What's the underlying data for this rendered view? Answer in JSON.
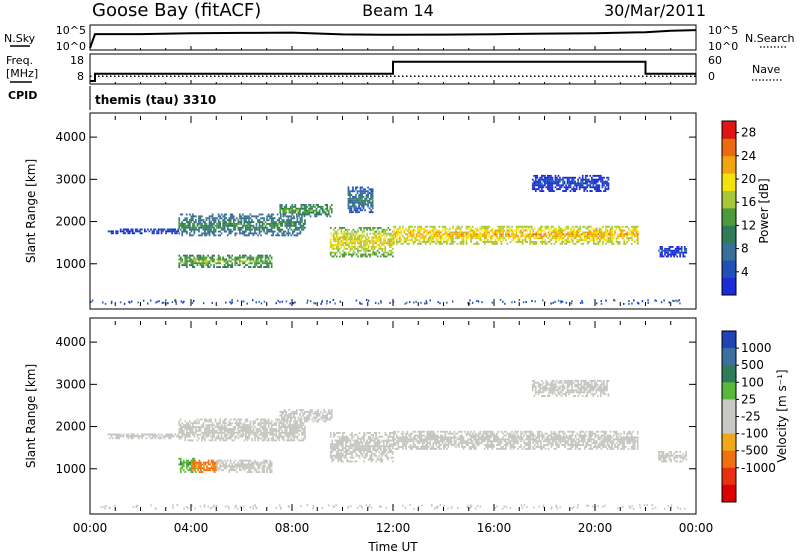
{
  "header": {
    "station": "Goose Bay (fitACF)",
    "beam": "Beam 14",
    "date": "30/Mar/2011"
  },
  "noise_panel": {
    "left_label": "N.Sky",
    "left_ticks": [
      "10^5",
      "10^0"
    ],
    "right_label": "N.Search",
    "right_ticks": [
      "10^5",
      "10^0"
    ]
  },
  "freq_panel": {
    "left_label_1": "Freq.",
    "left_label_2": "[MHz]",
    "left_ticks": [
      "18",
      "8"
    ],
    "right_label": "Nave",
    "right_ticks": [
      "60",
      "0"
    ],
    "cpid_label": "CPID",
    "cpid_text": "themis (tau) 3310"
  },
  "colors": {
    "power_scale": [
      "#1a2cd8",
      "#1f4fb8",
      "#3a6f9a",
      "#2f7a57",
      "#4b9b3a",
      "#a8c83a",
      "#f3e20e",
      "#f2a410",
      "#ec6a10",
      "#e01616"
    ],
    "velocity_scale": [
      "#2242b8",
      "#3a6fa0",
      "#2f7a57",
      "#58b83a",
      "#c8c8c4",
      "#c8c8c4",
      "#f0a818",
      "#f07010",
      "#e83010",
      "#dd0000"
    ],
    "ground_scatter": "#c6c6c0"
  },
  "chart_data": [
    {
      "type": "line",
      "title": "",
      "xlabel": "",
      "ylabel": "N.Sky",
      "x_unit": "hours UT",
      "xlim": [
        0,
        24
      ],
      "yscale": "log",
      "ylim": [
        1,
        100000
      ],
      "series": [
        {
          "name": "N.Sky",
          "x": [
            0,
            0.2,
            2,
            4,
            6,
            8,
            10,
            12,
            14,
            16,
            18,
            20,
            22,
            23,
            24
          ],
          "values": [
            1,
            3000,
            3000,
            5000,
            6000,
            7000,
            2500,
            2000,
            2200,
            2800,
            4000,
            5000,
            9000,
            20000,
            30000
          ]
        }
      ]
    },
    {
      "type": "line",
      "title": "",
      "xlabel": "",
      "ylabel": "Freq. [MHz]",
      "xlim": [
        0,
        24
      ],
      "ylim": [
        8,
        18
      ],
      "right_axis": {
        "label": "Nave",
        "ylim": [
          0,
          60
        ]
      },
      "series": [
        {
          "name": "Freq.",
          "x": [
            0,
            0.2,
            0.2,
            12,
            12,
            22,
            22,
            24
          ],
          "values": [
            8,
            8,
            11,
            11,
            16,
            16,
            11,
            11
          ]
        },
        {
          "name": "Nave",
          "x": [
            0,
            24
          ],
          "values": [
            12,
            12
          ]
        }
      ]
    },
    {
      "type": "heatmap",
      "title": "",
      "xlabel": "",
      "ylabel": "Slant Range [km]",
      "xlim": [
        0,
        24
      ],
      "ylim": [
        0,
        4500
      ],
      "yticks": [
        1000,
        2000,
        3000,
        4000
      ],
      "colorbar": {
        "label": "Power [dB]",
        "ticks": [
          "4",
          "8",
          "12",
          "16",
          "20",
          "24",
          "28"
        ],
        "range": [
          0,
          30
        ]
      },
      "bands": [
        {
          "t0": 0.7,
          "t1": 3.5,
          "r0": 1700,
          "r1": 1820,
          "value": 6
        },
        {
          "t0": 3.5,
          "t1": 8.5,
          "r0": 1650,
          "r1": 2150,
          "value": 12
        },
        {
          "t0": 7.5,
          "t1": 9.6,
          "r0": 2100,
          "r1": 2400,
          "value": 14
        },
        {
          "t0": 3.5,
          "t1": 7.2,
          "r0": 900,
          "r1": 1200,
          "value": 16
        },
        {
          "t0": 9.5,
          "t1": 12.0,
          "r0": 1150,
          "r1": 1850,
          "value": 20
        },
        {
          "t0": 12.0,
          "t1": 21.7,
          "r0": 1450,
          "r1": 1900,
          "value": 22
        },
        {
          "t0": 10.2,
          "t1": 11.2,
          "r0": 2200,
          "r1": 2800,
          "value": 10
        },
        {
          "t0": 17.5,
          "t1": 20.5,
          "r0": 2700,
          "r1": 3100,
          "value": 5
        },
        {
          "t0": 22.5,
          "t1": 23.6,
          "r0": 1150,
          "r1": 1400,
          "value": 5
        }
      ]
    },
    {
      "type": "heatmap",
      "title": "",
      "xlabel": "Time UT",
      "ylabel": "Slant Range [km]",
      "xlim": [
        0,
        24
      ],
      "ylim": [
        0,
        4500
      ],
      "xticks": [
        "00:00",
        "04:00",
        "08:00",
        "12:00",
        "16:00",
        "20:00",
        "00:00"
      ],
      "yticks": [
        1000,
        2000,
        3000,
        4000
      ],
      "colorbar": {
        "label": "Velocity [m s⁻¹]",
        "ticks": [
          "1000",
          "500",
          "100",
          "25",
          "-25",
          "-100",
          "-500",
          "-1000"
        ]
      },
      "bands": [
        {
          "t0": 0.7,
          "t1": 3.5,
          "r0": 1700,
          "r1": 1820,
          "value": 0
        },
        {
          "t0": 3.5,
          "t1": 8.5,
          "r0": 1650,
          "r1": 2150,
          "value": 0
        },
        {
          "t0": 7.5,
          "t1": 9.6,
          "r0": 2100,
          "r1": 2400,
          "value": 0
        },
        {
          "t0": 3.5,
          "t1": 4.2,
          "r0": 900,
          "r1": 1250,
          "value": 150
        },
        {
          "t0": 4.0,
          "t1": 5.0,
          "r0": 900,
          "r1": 1200,
          "value": -150
        },
        {
          "t0": 5.0,
          "t1": 7.2,
          "r0": 900,
          "r1": 1200,
          "value": 0
        },
        {
          "t0": 9.5,
          "t1": 12.0,
          "r0": 1150,
          "r1": 1850,
          "value": 0
        },
        {
          "t0": 12.0,
          "t1": 21.7,
          "r0": 1450,
          "r1": 1900,
          "value": 0
        },
        {
          "t0": 17.5,
          "t1": 20.5,
          "r0": 2700,
          "r1": 3100,
          "value": 0
        },
        {
          "t0": 22.5,
          "t1": 23.6,
          "r0": 1150,
          "r1": 1400,
          "value": 0
        }
      ]
    }
  ]
}
